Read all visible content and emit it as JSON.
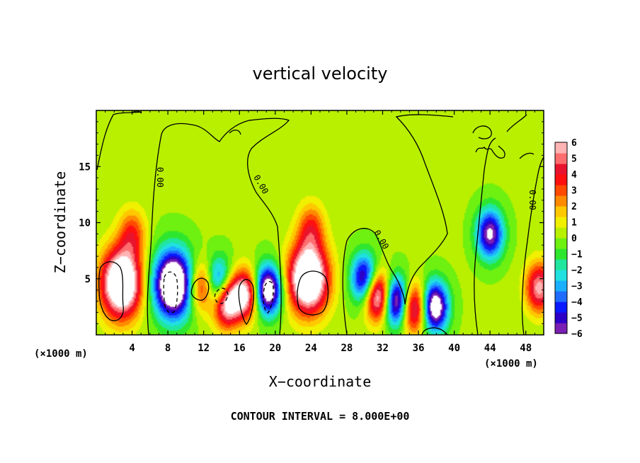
{
  "chart_data": {
    "type": "heatmap",
    "title": "vertical velocity",
    "xlabel": "X−coordinate",
    "ylabel": "Z−coordinate",
    "x_unit_label": "(×1000 m)",
    "y_unit_label": "(×1000 m)",
    "footnote": "CONTOUR INTERVAL = 8.000E+00",
    "xlim": [
      0,
      50
    ],
    "ylim": [
      0,
      20
    ],
    "x_ticks": [
      4,
      8,
      12,
      16,
      20,
      24,
      28,
      32,
      36,
      40,
      44,
      48
    ],
    "x_tick_labels": [
      "4",
      "8",
      "12",
      "16",
      "20",
      "24",
      "28",
      "32",
      "36",
      "40",
      "44",
      "48"
    ],
    "y_ticks": [
      5,
      10,
      15
    ],
    "y_tick_labels": [
      "5",
      "10",
      "15"
    ],
    "colorbar": {
      "min": -6,
      "max": 6,
      "labels": [
        "6",
        "5",
        "4",
        "3",
        "2",
        "1",
        "0",
        "−1",
        "−2",
        "−3",
        "−4",
        "−5",
        "−6"
      ],
      "colors": [
        "#7a1fb3",
        "#2d00c8",
        "#0a1aff",
        "#1f6cff",
        "#1ab0ff",
        "#20e0e0",
        "#20e6a0",
        "#2ee62e",
        "#6ef010",
        "#b8f000",
        "#f0f000",
        "#ffc800",
        "#ff8a00",
        "#ff4a00",
        "#ff1010",
        "#e8142e",
        "#ff6e6e",
        "#ffb4b4"
      ]
    },
    "contour_label": "0.00",
    "features": [
      {
        "kind": "updraft",
        "x": 2.8,
        "z": 4.6,
        "peak": 6
      },
      {
        "kind": "updraft",
        "x": 23.7,
        "z": 5.0,
        "peak": 6
      },
      {
        "kind": "updraft",
        "x": 49.5,
        "z": 4.2,
        "peak": 3.5
      },
      {
        "kind": "updraft",
        "x": 4.0,
        "z": 9.0,
        "peak": 2
      },
      {
        "kind": "updraft",
        "x": 24.0,
        "z": 9.5,
        "peak": 2
      },
      {
        "kind": "updraft",
        "x": 11.8,
        "z": 4.3,
        "peak": 3
      },
      {
        "kind": "updraft",
        "x": 14.5,
        "z": 3.0,
        "peak": 5
      },
      {
        "kind": "updraft",
        "x": 16.6,
        "z": 3.6,
        "peak": 4
      },
      {
        "kind": "updraft",
        "x": 31.5,
        "z": 3.5,
        "peak": 5
      },
      {
        "kind": "updraft",
        "x": 35.5,
        "z": 2.4,
        "peak": 4
      },
      {
        "kind": "downdraft",
        "x": 8.6,
        "z": 4.5,
        "peak": -6
      },
      {
        "kind": "downdraft",
        "x": 13.7,
        "z": 4.5,
        "peak": -4
      },
      {
        "kind": "downdraft",
        "x": 19.2,
        "z": 4.0,
        "peak": -5
      },
      {
        "kind": "downdraft",
        "x": 30.0,
        "z": 5.0,
        "peak": -4
      },
      {
        "kind": "downdraft",
        "x": 33.5,
        "z": 3.0,
        "peak": -5
      },
      {
        "kind": "downdraft",
        "x": 37.8,
        "z": 2.5,
        "peak": -5
      },
      {
        "kind": "downdraft",
        "x": 44.0,
        "z": 9.0,
        "peak": -4
      }
    ]
  }
}
